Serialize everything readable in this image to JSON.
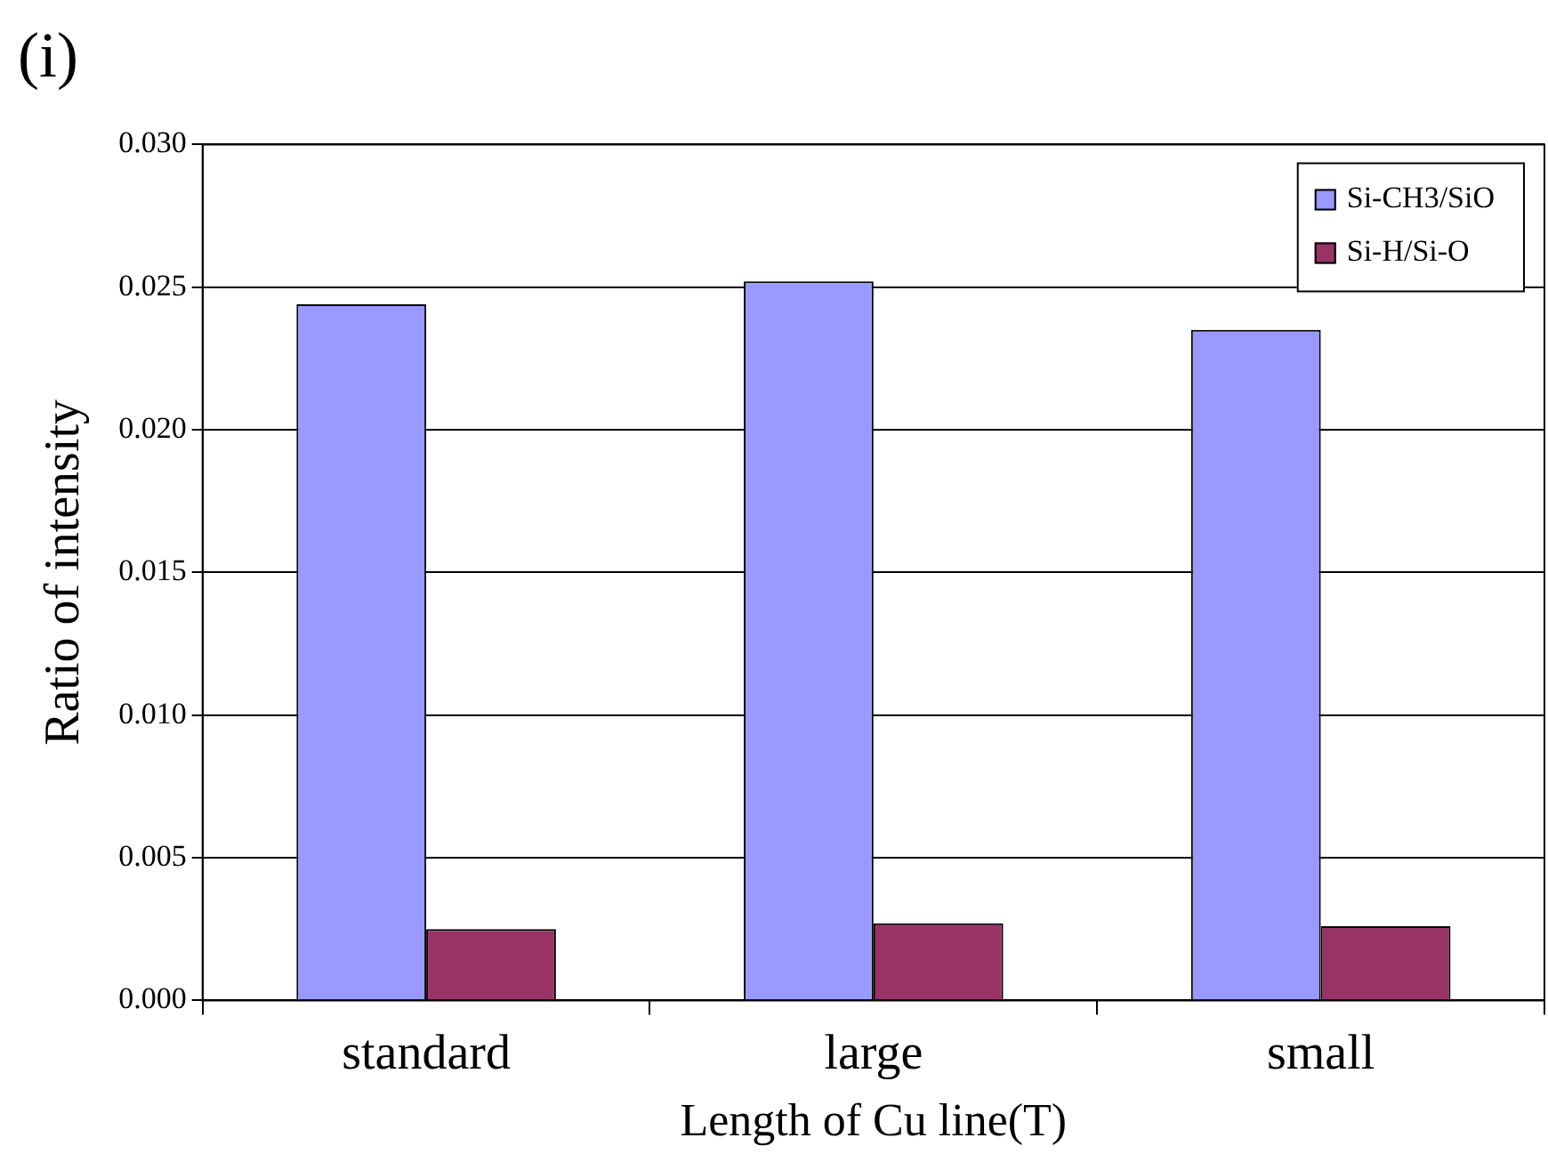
{
  "chart_data": {
    "type": "bar",
    "title": "(i)",
    "xlabel": "Length of Cu line(T)",
    "ylabel": "Ratio of intensity",
    "categories": [
      "standard",
      "large",
      "small"
    ],
    "series": [
      {
        "name": "Si-CH3/SiO",
        "color": "#9999ff",
        "values": [
          0.0244,
          0.0252,
          0.0235
        ]
      },
      {
        "name": "Si-H/Si-O",
        "color": "#993366",
        "values": [
          0.0025,
          0.0027,
          0.0026
        ]
      }
    ],
    "ylim": [
      0,
      0.03
    ],
    "yticks": [
      {
        "value": 0,
        "label": "0.000"
      },
      {
        "value": 0.005,
        "label": "0.005"
      },
      {
        "value": 0.01,
        "label": "0.010"
      },
      {
        "value": 0.015,
        "label": "0.015"
      },
      {
        "value": 0.02,
        "label": "0.020"
      },
      {
        "value": 0.025,
        "label": "0.025"
      },
      {
        "value": 0.03,
        "label": "0.030"
      }
    ],
    "grid": "y",
    "legend": "top right"
  }
}
